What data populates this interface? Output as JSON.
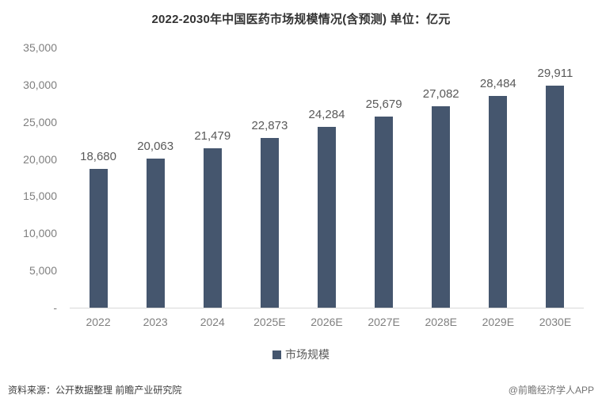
{
  "title": "2022-2030年中国医药市场规模情况(含预测) 单位：亿元",
  "legend": {
    "label": "市场规模",
    "marker_color": "#45566E"
  },
  "footer": {
    "source": "资料来源：公开数据整理 前瞻产业研究院",
    "watermark": "@前瞻经济学人APP"
  },
  "colors": {
    "bar": "#45566E",
    "axis_line": "#D9D9D9",
    "tick_text": "#7F7F7F",
    "value_text": "#595959",
    "title_text": "#333333"
  },
  "chart_data": {
    "type": "bar",
    "title": "2022-2030年中国医药市场规模情况(含预测) 单位：亿元",
    "categories": [
      "2022",
      "2023",
      "2024",
      "2025E",
      "2026E",
      "2027E",
      "2028E",
      "2029E",
      "2030E"
    ],
    "values": [
      18680,
      20063,
      21479,
      22873,
      24284,
      25679,
      27082,
      28484,
      29911
    ],
    "value_labels": [
      "18,680",
      "20,063",
      "21,479",
      "22,873",
      "24,284",
      "25,679",
      "27,082",
      "28,484",
      "29,911"
    ],
    "xlabel": "",
    "ylabel": "",
    "ylim": [
      0,
      35000
    ],
    "y_tick_interval": 5000,
    "y_tick_labels": [
      "-",
      "5,000",
      "10,000",
      "15,000",
      "20,000",
      "25,000",
      "30,000",
      "35,000"
    ],
    "grid": false,
    "legend_position": "bottom",
    "series_name": "市场规模",
    "bar_color": "#45566E",
    "unit": "亿元"
  }
}
